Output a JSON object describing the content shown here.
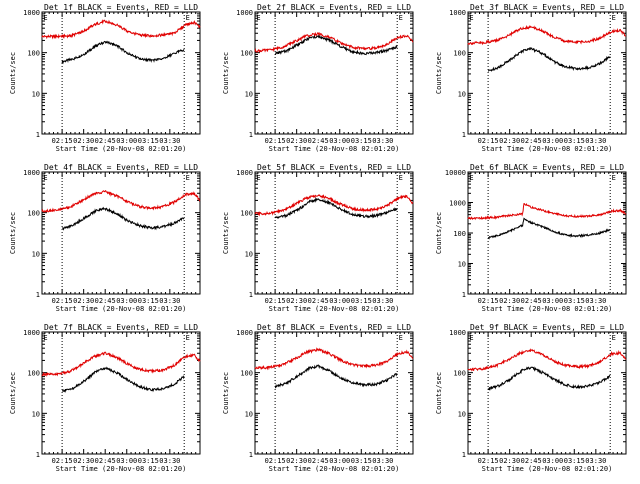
{
  "chart_data": [
    {
      "panel": "Det 1f",
      "type": "line",
      "title": "Det 1f BLACK = Events, RED = LLD",
      "ylabel": "Counts/sec",
      "xlabel": "Start Time (20-Nov-08 02:01:20)",
      "yscale": "log",
      "ylim": [
        1,
        1000
      ],
      "yticks": [
        "1",
        "10",
        "100",
        "1000"
      ],
      "xticks": [
        "02:15",
        "02:30",
        "02:45",
        "03:00",
        "03:15",
        "03:30"
      ],
      "xlim_min": [
        0,
        110
      ],
      "dotted_lines_min": [
        14,
        99
      ],
      "flag_label": "E",
      "series": [
        {
          "name": "BLACK = Events",
          "color": "#000000",
          "x": [
            14,
            22,
            30,
            38,
            44,
            52,
            60,
            68,
            76,
            84,
            92,
            99
          ],
          "y": [
            60,
            70,
            95,
            150,
            185,
            150,
            95,
            70,
            65,
            70,
            95,
            120
          ]
        },
        {
          "name": "RED = LLD",
          "color": "#e00000",
          "x": [
            0,
            10,
            20,
            28,
            36,
            44,
            52,
            60,
            68,
            76,
            84,
            92,
            100,
            106,
            110
          ],
          "y": [
            250,
            250,
            260,
            320,
            480,
            600,
            480,
            330,
            270,
            260,
            270,
            300,
            480,
            560,
            420
          ]
        }
      ]
    },
    {
      "panel": "Det 2f",
      "type": "line",
      "title": "Det 2f BLACK = Events, RED = LLD",
      "ylabel": "Counts/sec",
      "xlabel": "Start Time (20-Nov-08 02:01:20)",
      "yscale": "log",
      "ylim": [
        1,
        1000
      ],
      "yticks": [
        "1",
        "10",
        "100",
        "1000"
      ],
      "xticks": [
        "02:15",
        "02:30",
        "02:45",
        "03:00",
        "03:15",
        "03:30"
      ],
      "xlim_min": [
        0,
        110
      ],
      "dotted_lines_min": [
        14,
        99
      ],
      "flag_label": "E",
      "series": [
        {
          "name": "BLACK = Events",
          "color": "#000000",
          "x": [
            14,
            22,
            30,
            38,
            44,
            52,
            60,
            68,
            76,
            84,
            92,
            99
          ],
          "y": [
            95,
            110,
            160,
            230,
            250,
            200,
            140,
            105,
            95,
            100,
            115,
            140
          ]
        },
        {
          "name": "RED = LLD",
          "color": "#e00000",
          "x": [
            0,
            10,
            20,
            28,
            36,
            44,
            52,
            60,
            68,
            76,
            84,
            92,
            100,
            106,
            110
          ],
          "y": [
            110,
            115,
            140,
            190,
            260,
            290,
            240,
            170,
            135,
            125,
            130,
            160,
            240,
            260,
            180
          ]
        }
      ]
    },
    {
      "panel": "Det 3f",
      "type": "line",
      "title": "Det 3f BLACK = Events, RED = LLD",
      "ylabel": "Counts/sec",
      "xlabel": "Start Time (20-Nov-08 02:01:20)",
      "yscale": "log",
      "ylim": [
        1,
        1000
      ],
      "yticks": [
        "1",
        "10",
        "100",
        "1000"
      ],
      "xticks": [
        "02:15",
        "02:30",
        "02:45",
        "03:00",
        "03:15",
        "03:30"
      ],
      "xlim_min": [
        0,
        110
      ],
      "dotted_lines_min": [
        14,
        99
      ],
      "flag_label": "E",
      "series": [
        {
          "name": "BLACK = Events",
          "color": "#000000",
          "x": [
            14,
            22,
            30,
            38,
            44,
            52,
            60,
            68,
            76,
            84,
            92,
            99
          ],
          "y": [
            35,
            45,
            70,
            110,
            125,
            95,
            60,
            45,
            40,
            42,
            55,
            80
          ]
        },
        {
          "name": "RED = LLD",
          "color": "#e00000",
          "x": [
            0,
            10,
            20,
            28,
            36,
            44,
            52,
            60,
            68,
            76,
            84,
            92,
            100,
            106,
            110
          ],
          "y": [
            170,
            175,
            200,
            260,
            380,
            430,
            340,
            240,
            190,
            180,
            190,
            230,
            330,
            350,
            260
          ]
        }
      ]
    },
    {
      "panel": "Det 4f",
      "type": "line",
      "title": "Det 4f BLACK = Events, RED = LLD",
      "ylabel": "Counts/sec",
      "xlabel": "Start Time (20-Nov-08 02:01:20)",
      "yscale": "log",
      "ylim": [
        1,
        1000
      ],
      "yticks": [
        "1",
        "10",
        "100",
        "1000"
      ],
      "xticks": [
        "02:15",
        "02:30",
        "02:45",
        "03:00",
        "03:15",
        "03:30"
      ],
      "xlim_min": [
        0,
        110
      ],
      "dotted_lines_min": [
        14,
        99
      ],
      "flag_label": "E",
      "series": [
        {
          "name": "BLACK = Events",
          "color": "#000000",
          "x": [
            14,
            22,
            30,
            38,
            44,
            52,
            60,
            68,
            76,
            84,
            92,
            99
          ],
          "y": [
            40,
            50,
            75,
            115,
            125,
            95,
            62,
            48,
            42,
            45,
            55,
            75
          ]
        },
        {
          "name": "RED = LLD",
          "color": "#e00000",
          "x": [
            0,
            10,
            20,
            28,
            36,
            44,
            52,
            60,
            68,
            76,
            84,
            92,
            100,
            106,
            110
          ],
          "y": [
            110,
            115,
            140,
            200,
            290,
            330,
            260,
            180,
            140,
            130,
            140,
            180,
            280,
            300,
            200
          ]
        }
      ]
    },
    {
      "panel": "Det 5f",
      "type": "line",
      "title": "Det 5f BLACK = Events, RED = LLD",
      "ylabel": "Counts/sec",
      "xlabel": "Start Time (20-Nov-08 02:01:20)",
      "yscale": "log",
      "ylim": [
        1,
        1000
      ],
      "yticks": [
        "1",
        "10",
        "100",
        "1000"
      ],
      "xticks": [
        "02:15",
        "02:30",
        "02:45",
        "03:00",
        "03:15",
        "03:30"
      ],
      "xlim_min": [
        0,
        110
      ],
      "dotted_lines_min": [
        14,
        99
      ],
      "flag_label": "E",
      "series": [
        {
          "name": "BLACK = Events",
          "color": "#000000",
          "x": [
            14,
            22,
            30,
            38,
            44,
            52,
            60,
            68,
            76,
            84,
            92,
            99
          ],
          "y": [
            75,
            85,
            120,
            185,
            215,
            175,
            120,
            90,
            80,
            85,
            100,
            125
          ]
        },
        {
          "name": "RED = LLD",
          "color": "#e00000",
          "x": [
            0,
            10,
            20,
            28,
            36,
            44,
            52,
            60,
            68,
            76,
            84,
            92,
            100,
            106,
            110
          ],
          "y": [
            95,
            95,
            115,
            160,
            230,
            270,
            220,
            160,
            125,
            115,
            120,
            150,
            230,
            250,
            170
          ]
        }
      ]
    },
    {
      "panel": "Det 6f",
      "type": "line",
      "title": "Det 6f BLACK = Events, RED = LLD",
      "ylabel": "Counts/sec",
      "xlabel": "Start Time (20-Nov-08 02:01:20)",
      "yscale": "log",
      "ylim": [
        1,
        10000
      ],
      "yticks": [
        "1",
        "10",
        "100",
        "1000",
        "10000"
      ],
      "xticks": [
        "02:15",
        "02:30",
        "02:45",
        "03:00",
        "03:15",
        "03:30"
      ],
      "xlim_min": [
        0,
        110
      ],
      "dotted_lines_min": [
        14,
        99
      ],
      "flag_label": "E",
      "series": [
        {
          "name": "BLACK = Events",
          "color": "#000000",
          "x": [
            14,
            22,
            30,
            38,
            39,
            44,
            52,
            60,
            68,
            76,
            84,
            92,
            99
          ],
          "y": [
            70,
            85,
            120,
            180,
            300,
            220,
            160,
            110,
            85,
            80,
            85,
            100,
            130
          ]
        },
        {
          "name": "RED = LLD",
          "color": "#e00000",
          "x": [
            0,
            10,
            20,
            30,
            38,
            39,
            44,
            52,
            60,
            68,
            76,
            84,
            92,
            100,
            106,
            110
          ],
          "y": [
            300,
            310,
            330,
            380,
            420,
            900,
            700,
            550,
            430,
            370,
            350,
            360,
            400,
            520,
            550,
            430
          ]
        }
      ]
    },
    {
      "panel": "Det 7f",
      "type": "line",
      "title": "Det 7f BLACK = Events, RED = LLD",
      "ylabel": "Counts/sec",
      "xlabel": "Start Time (20-Nov-08 02:01:20)",
      "yscale": "log",
      "ylim": [
        1,
        1000
      ],
      "yticks": [
        "1",
        "10",
        "100",
        "1000"
      ],
      "xticks": [
        "02:15",
        "02:30",
        "02:45",
        "03:00",
        "03:15",
        "03:30"
      ],
      "xlim_min": [
        0,
        110
      ],
      "dotted_lines_min": [
        14,
        99
      ],
      "flag_label": "E",
      "series": [
        {
          "name": "BLACK = Events",
          "color": "#000000",
          "x": [
            14,
            22,
            30,
            38,
            44,
            52,
            60,
            68,
            76,
            84,
            92,
            99
          ],
          "y": [
            35,
            42,
            65,
            110,
            130,
            100,
            65,
            45,
            38,
            40,
            52,
            80
          ]
        },
        {
          "name": "RED = LLD",
          "color": "#e00000",
          "x": [
            0,
            10,
            20,
            28,
            36,
            44,
            52,
            60,
            68,
            76,
            84,
            92,
            100,
            106,
            110
          ],
          "y": [
            90,
            90,
            110,
            160,
            250,
            300,
            240,
            160,
            120,
            110,
            115,
            150,
            250,
            270,
            190
          ]
        }
      ]
    },
    {
      "panel": "Det 8f",
      "type": "line",
      "title": "Det 8f BLACK = Events, RED = LLD",
      "ylabel": "Counts/sec",
      "xlabel": "Start Time (20-Nov-08 02:01:20)",
      "yscale": "log",
      "ylim": [
        1,
        1000
      ],
      "yticks": [
        "1",
        "10",
        "100",
        "1000"
      ],
      "xticks": [
        "02:15",
        "02:30",
        "02:45",
        "03:00",
        "03:15",
        "03:30"
      ],
      "xlim_min": [
        0,
        110
      ],
      "dotted_lines_min": [
        14,
        99
      ],
      "flag_label": "E",
      "series": [
        {
          "name": "BLACK = Events",
          "color": "#000000",
          "x": [
            14,
            22,
            30,
            38,
            44,
            52,
            60,
            68,
            76,
            84,
            92,
            99
          ],
          "y": [
            45,
            55,
            85,
            130,
            145,
            110,
            72,
            55,
            50,
            52,
            65,
            95
          ]
        },
        {
          "name": "RED = LLD",
          "color": "#e00000",
          "x": [
            0,
            10,
            20,
            28,
            36,
            44,
            52,
            60,
            68,
            76,
            84,
            92,
            100,
            106,
            110
          ],
          "y": [
            130,
            135,
            160,
            220,
            320,
            370,
            290,
            200,
            155,
            145,
            150,
            190,
            300,
            320,
            220
          ]
        }
      ]
    },
    {
      "panel": "Det 9f",
      "type": "line",
      "title": "Det 9f BLACK = Events, RED = LLD",
      "ylabel": "Counts/sec",
      "xlabel": "Start Time (20-Nov-08 02:01:20)",
      "yscale": "log",
      "ylim": [
        1,
        1000
      ],
      "yticks": [
        "1",
        "10",
        "100",
        "1000"
      ],
      "xticks": [
        "02:15",
        "02:30",
        "02:45",
        "03:00",
        "03:15",
        "03:30"
      ],
      "xlim_min": [
        0,
        110
      ],
      "dotted_lines_min": [
        14,
        99
      ],
      "flag_label": "E",
      "series": [
        {
          "name": "BLACK = Events",
          "color": "#000000",
          "x": [
            14,
            22,
            30,
            38,
            44,
            52,
            60,
            68,
            76,
            84,
            92,
            99
          ],
          "y": [
            40,
            48,
            72,
            115,
            135,
            100,
            68,
            50,
            44,
            47,
            58,
            85
          ]
        },
        {
          "name": "RED = LLD",
          "color": "#e00000",
          "x": [
            0,
            10,
            20,
            28,
            36,
            44,
            52,
            60,
            68,
            76,
            84,
            92,
            100,
            106,
            110
          ],
          "y": [
            120,
            125,
            150,
            210,
            300,
            350,
            280,
            190,
            150,
            140,
            145,
            185,
            290,
            310,
            210
          ]
        }
      ]
    }
  ]
}
